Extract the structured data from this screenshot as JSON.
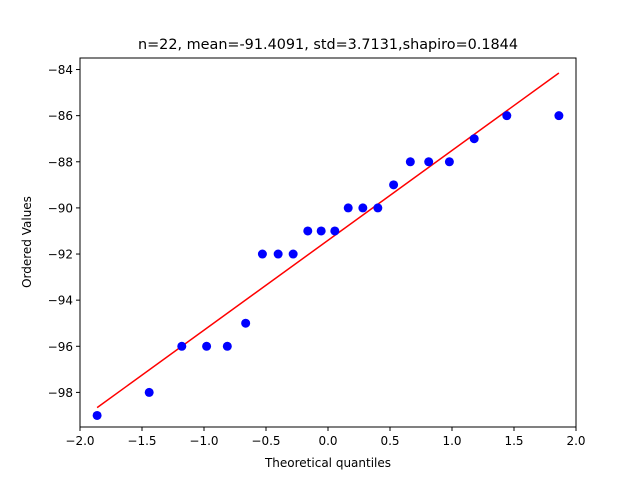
{
  "chart_data": {
    "type": "scatter",
    "title": "n=22, mean=-91.4091, std=3.7131,shapiro=0.1844",
    "xlabel": "Theoretical quantiles",
    "ylabel": "Ordered Values",
    "xlim": [
      -2.0,
      2.0
    ],
    "ylim": [
      -99.5,
      -83.5
    ],
    "xticks": [
      -2.0,
      -1.5,
      -1.0,
      -0.5,
      0.0,
      0.5,
      1.0,
      1.5,
      2.0
    ],
    "xtick_labels": [
      "−2.0",
      "−1.5",
      "−1.0",
      "−0.5",
      "0.0",
      "0.5",
      "1.0",
      "1.5",
      "2.0"
    ],
    "yticks": [
      -98,
      -96,
      -94,
      -92,
      -90,
      -88,
      -86,
      -84
    ],
    "ytick_labels": [
      "−98",
      "−96",
      "−94",
      "−92",
      "−90",
      "−88",
      "−86",
      "−84"
    ],
    "grid": false,
    "points": {
      "color": "#0000ff",
      "x": [
        -1.862,
        -1.442,
        -1.179,
        -0.979,
        -0.812,
        -0.664,
        -0.529,
        -0.402,
        -0.281,
        -0.163,
        -0.055,
        0.055,
        0.163,
        0.281,
        0.402,
        0.529,
        0.664,
        0.812,
        0.979,
        1.179,
        1.442,
        1.862
      ],
      "y": [
        -99,
        -98,
        -96,
        -96,
        -96,
        -95,
        -92,
        -92,
        -92,
        -91,
        -91,
        -91,
        -90,
        -90,
        -90,
        -89,
        -88,
        -88,
        -88,
        -87,
        -86,
        -86
      ]
    },
    "fit_line": {
      "color": "#ff0000",
      "x": [
        -1.862,
        1.862
      ],
      "y": [
        -98.66,
        -84.15
      ]
    }
  }
}
